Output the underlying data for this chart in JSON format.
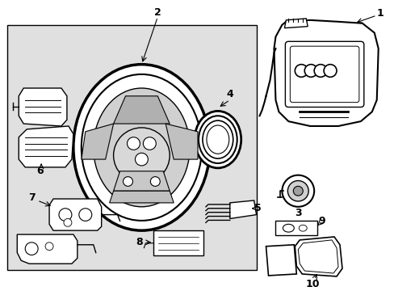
{
  "background_color": "#ffffff",
  "fig_width": 4.89,
  "fig_height": 3.6,
  "dpi": 100,
  "box_fill": "#e0e0e0",
  "box_edge": "#000000",
  "line_color": "#000000"
}
